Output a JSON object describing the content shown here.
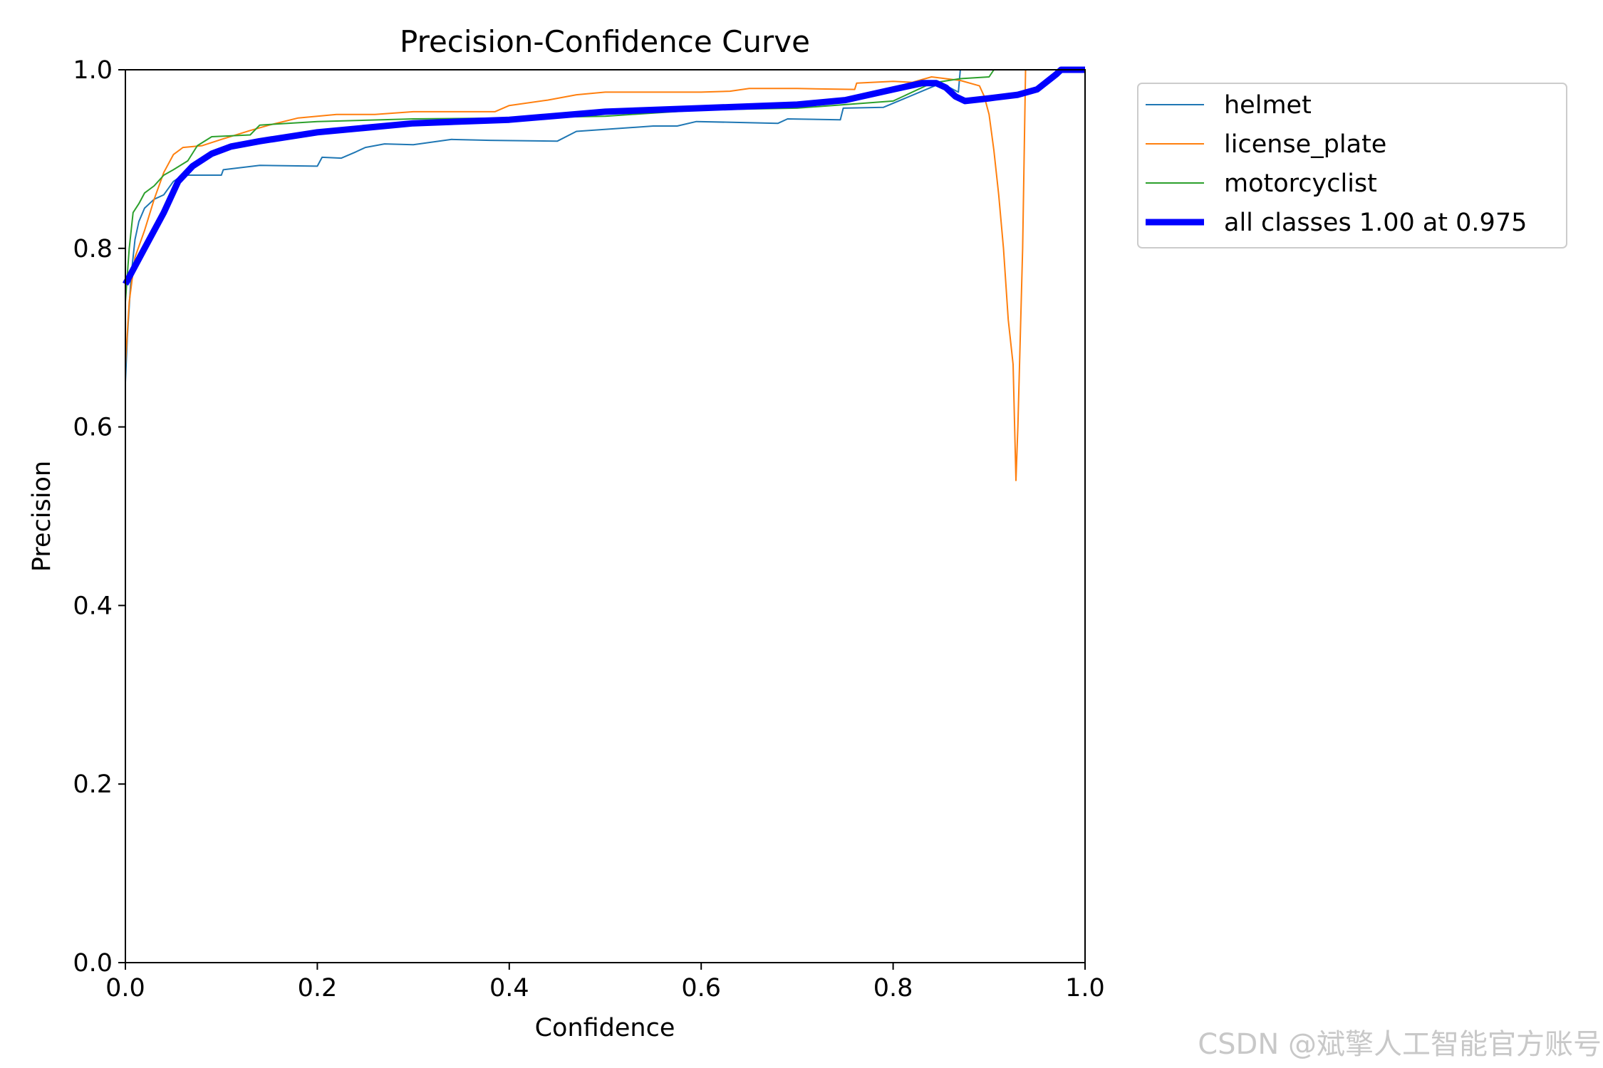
{
  "chart_data": {
    "type": "line",
    "title": "Precision-Confidence Curve",
    "xlabel": "Confidence",
    "ylabel": "Precision",
    "xlim": [
      0,
      1
    ],
    "ylim": [
      0,
      1
    ],
    "grid": false,
    "legend_placement": "outside-top-right",
    "x_ticks": [
      "0.0",
      "0.2",
      "0.4",
      "0.6",
      "0.8",
      "1.0"
    ],
    "y_ticks": [
      "0.0",
      "0.2",
      "0.4",
      "0.6",
      "0.8",
      "1.0"
    ],
    "series": [
      {
        "name": "helmet",
        "color": "#1f77b4",
        "width": 2,
        "points": [
          [
            0.0,
            0.65
          ],
          [
            0.002,
            0.7
          ],
          [
            0.006,
            0.77
          ],
          [
            0.01,
            0.81
          ],
          [
            0.014,
            0.83
          ],
          [
            0.02,
            0.845
          ],
          [
            0.03,
            0.855
          ],
          [
            0.04,
            0.86
          ],
          [
            0.05,
            0.875
          ],
          [
            0.06,
            0.882
          ],
          [
            0.1,
            0.882
          ],
          [
            0.102,
            0.888
          ],
          [
            0.14,
            0.893
          ],
          [
            0.2,
            0.892
          ],
          [
            0.205,
            0.902
          ],
          [
            0.225,
            0.901
          ],
          [
            0.24,
            0.908
          ],
          [
            0.25,
            0.913
          ],
          [
            0.27,
            0.917
          ],
          [
            0.3,
            0.916
          ],
          [
            0.34,
            0.922
          ],
          [
            0.38,
            0.921
          ],
          [
            0.45,
            0.92
          ],
          [
            0.47,
            0.931
          ],
          [
            0.55,
            0.937
          ],
          [
            0.575,
            0.937
          ],
          [
            0.595,
            0.942
          ],
          [
            0.68,
            0.94
          ],
          [
            0.69,
            0.945
          ],
          [
            0.745,
            0.944
          ],
          [
            0.748,
            0.957
          ],
          [
            0.79,
            0.958
          ],
          [
            0.85,
            0.985
          ],
          [
            0.868,
            0.975
          ],
          [
            0.87,
            1.0
          ],
          [
            1.0,
            1.0
          ]
        ]
      },
      {
        "name": "license_plate",
        "color": "#ff7f0e",
        "width": 2,
        "points": [
          [
            0.0,
            0.67
          ],
          [
            0.004,
            0.74
          ],
          [
            0.01,
            0.79
          ],
          [
            0.02,
            0.82
          ],
          [
            0.03,
            0.855
          ],
          [
            0.04,
            0.885
          ],
          [
            0.05,
            0.905
          ],
          [
            0.06,
            0.913
          ],
          [
            0.08,
            0.915
          ],
          [
            0.1,
            0.922
          ],
          [
            0.13,
            0.932
          ],
          [
            0.15,
            0.938
          ],
          [
            0.18,
            0.946
          ],
          [
            0.22,
            0.95
          ],
          [
            0.26,
            0.95
          ],
          [
            0.3,
            0.953
          ],
          [
            0.385,
            0.953
          ],
          [
            0.4,
            0.96
          ],
          [
            0.44,
            0.966
          ],
          [
            0.47,
            0.972
          ],
          [
            0.5,
            0.975
          ],
          [
            0.6,
            0.975
          ],
          [
            0.63,
            0.976
          ],
          [
            0.65,
            0.979
          ],
          [
            0.7,
            0.979
          ],
          [
            0.76,
            0.978
          ],
          [
            0.762,
            0.985
          ],
          [
            0.8,
            0.987
          ],
          [
            0.82,
            0.986
          ],
          [
            0.84,
            0.992
          ],
          [
            0.87,
            0.988
          ],
          [
            0.89,
            0.982
          ],
          [
            0.895,
            0.97
          ],
          [
            0.9,
            0.95
          ],
          [
            0.905,
            0.91
          ],
          [
            0.91,
            0.86
          ],
          [
            0.915,
            0.8
          ],
          [
            0.92,
            0.72
          ],
          [
            0.925,
            0.67
          ],
          [
            0.928,
            0.54
          ],
          [
            0.93,
            0.6
          ],
          [
            0.935,
            0.8
          ],
          [
            0.938,
            1.0
          ],
          [
            1.0,
            1.0
          ]
        ]
      },
      {
        "name": "motorcyclist",
        "color": "#2ca02c",
        "width": 2,
        "points": [
          [
            0.0,
            0.74
          ],
          [
            0.004,
            0.8
          ],
          [
            0.008,
            0.84
          ],
          [
            0.014,
            0.85
          ],
          [
            0.02,
            0.862
          ],
          [
            0.03,
            0.87
          ],
          [
            0.04,
            0.882
          ],
          [
            0.05,
            0.888
          ],
          [
            0.065,
            0.898
          ],
          [
            0.075,
            0.915
          ],
          [
            0.09,
            0.925
          ],
          [
            0.13,
            0.927
          ],
          [
            0.14,
            0.938
          ],
          [
            0.2,
            0.942
          ],
          [
            0.3,
            0.945
          ],
          [
            0.4,
            0.946
          ],
          [
            0.5,
            0.948
          ],
          [
            0.6,
            0.955
          ],
          [
            0.7,
            0.957
          ],
          [
            0.8,
            0.965
          ],
          [
            0.84,
            0.985
          ],
          [
            0.87,
            0.99
          ],
          [
            0.9,
            0.992
          ],
          [
            0.905,
            1.0
          ],
          [
            1.0,
            1.0
          ]
        ]
      },
      {
        "name": "all classes 1.00 at 0.975",
        "color": "#0000ff",
        "width": 9,
        "points": [
          [
            0.0,
            0.76
          ],
          [
            0.02,
            0.8
          ],
          [
            0.04,
            0.84
          ],
          [
            0.055,
            0.875
          ],
          [
            0.07,
            0.892
          ],
          [
            0.09,
            0.906
          ],
          [
            0.11,
            0.914
          ],
          [
            0.14,
            0.92
          ],
          [
            0.2,
            0.93
          ],
          [
            0.3,
            0.94
          ],
          [
            0.4,
            0.944
          ],
          [
            0.5,
            0.953
          ],
          [
            0.6,
            0.957
          ],
          [
            0.7,
            0.961
          ],
          [
            0.75,
            0.966
          ],
          [
            0.8,
            0.978
          ],
          [
            0.83,
            0.985
          ],
          [
            0.845,
            0.985
          ],
          [
            0.855,
            0.98
          ],
          [
            0.865,
            0.97
          ],
          [
            0.875,
            0.965
          ],
          [
            0.9,
            0.968
          ],
          [
            0.93,
            0.972
          ],
          [
            0.95,
            0.978
          ],
          [
            0.97,
            0.995
          ],
          [
            0.975,
            1.0
          ],
          [
            1.0,
            1.0
          ]
        ]
      }
    ]
  },
  "watermark": "CSDN @斌擎人工智能官方账号"
}
